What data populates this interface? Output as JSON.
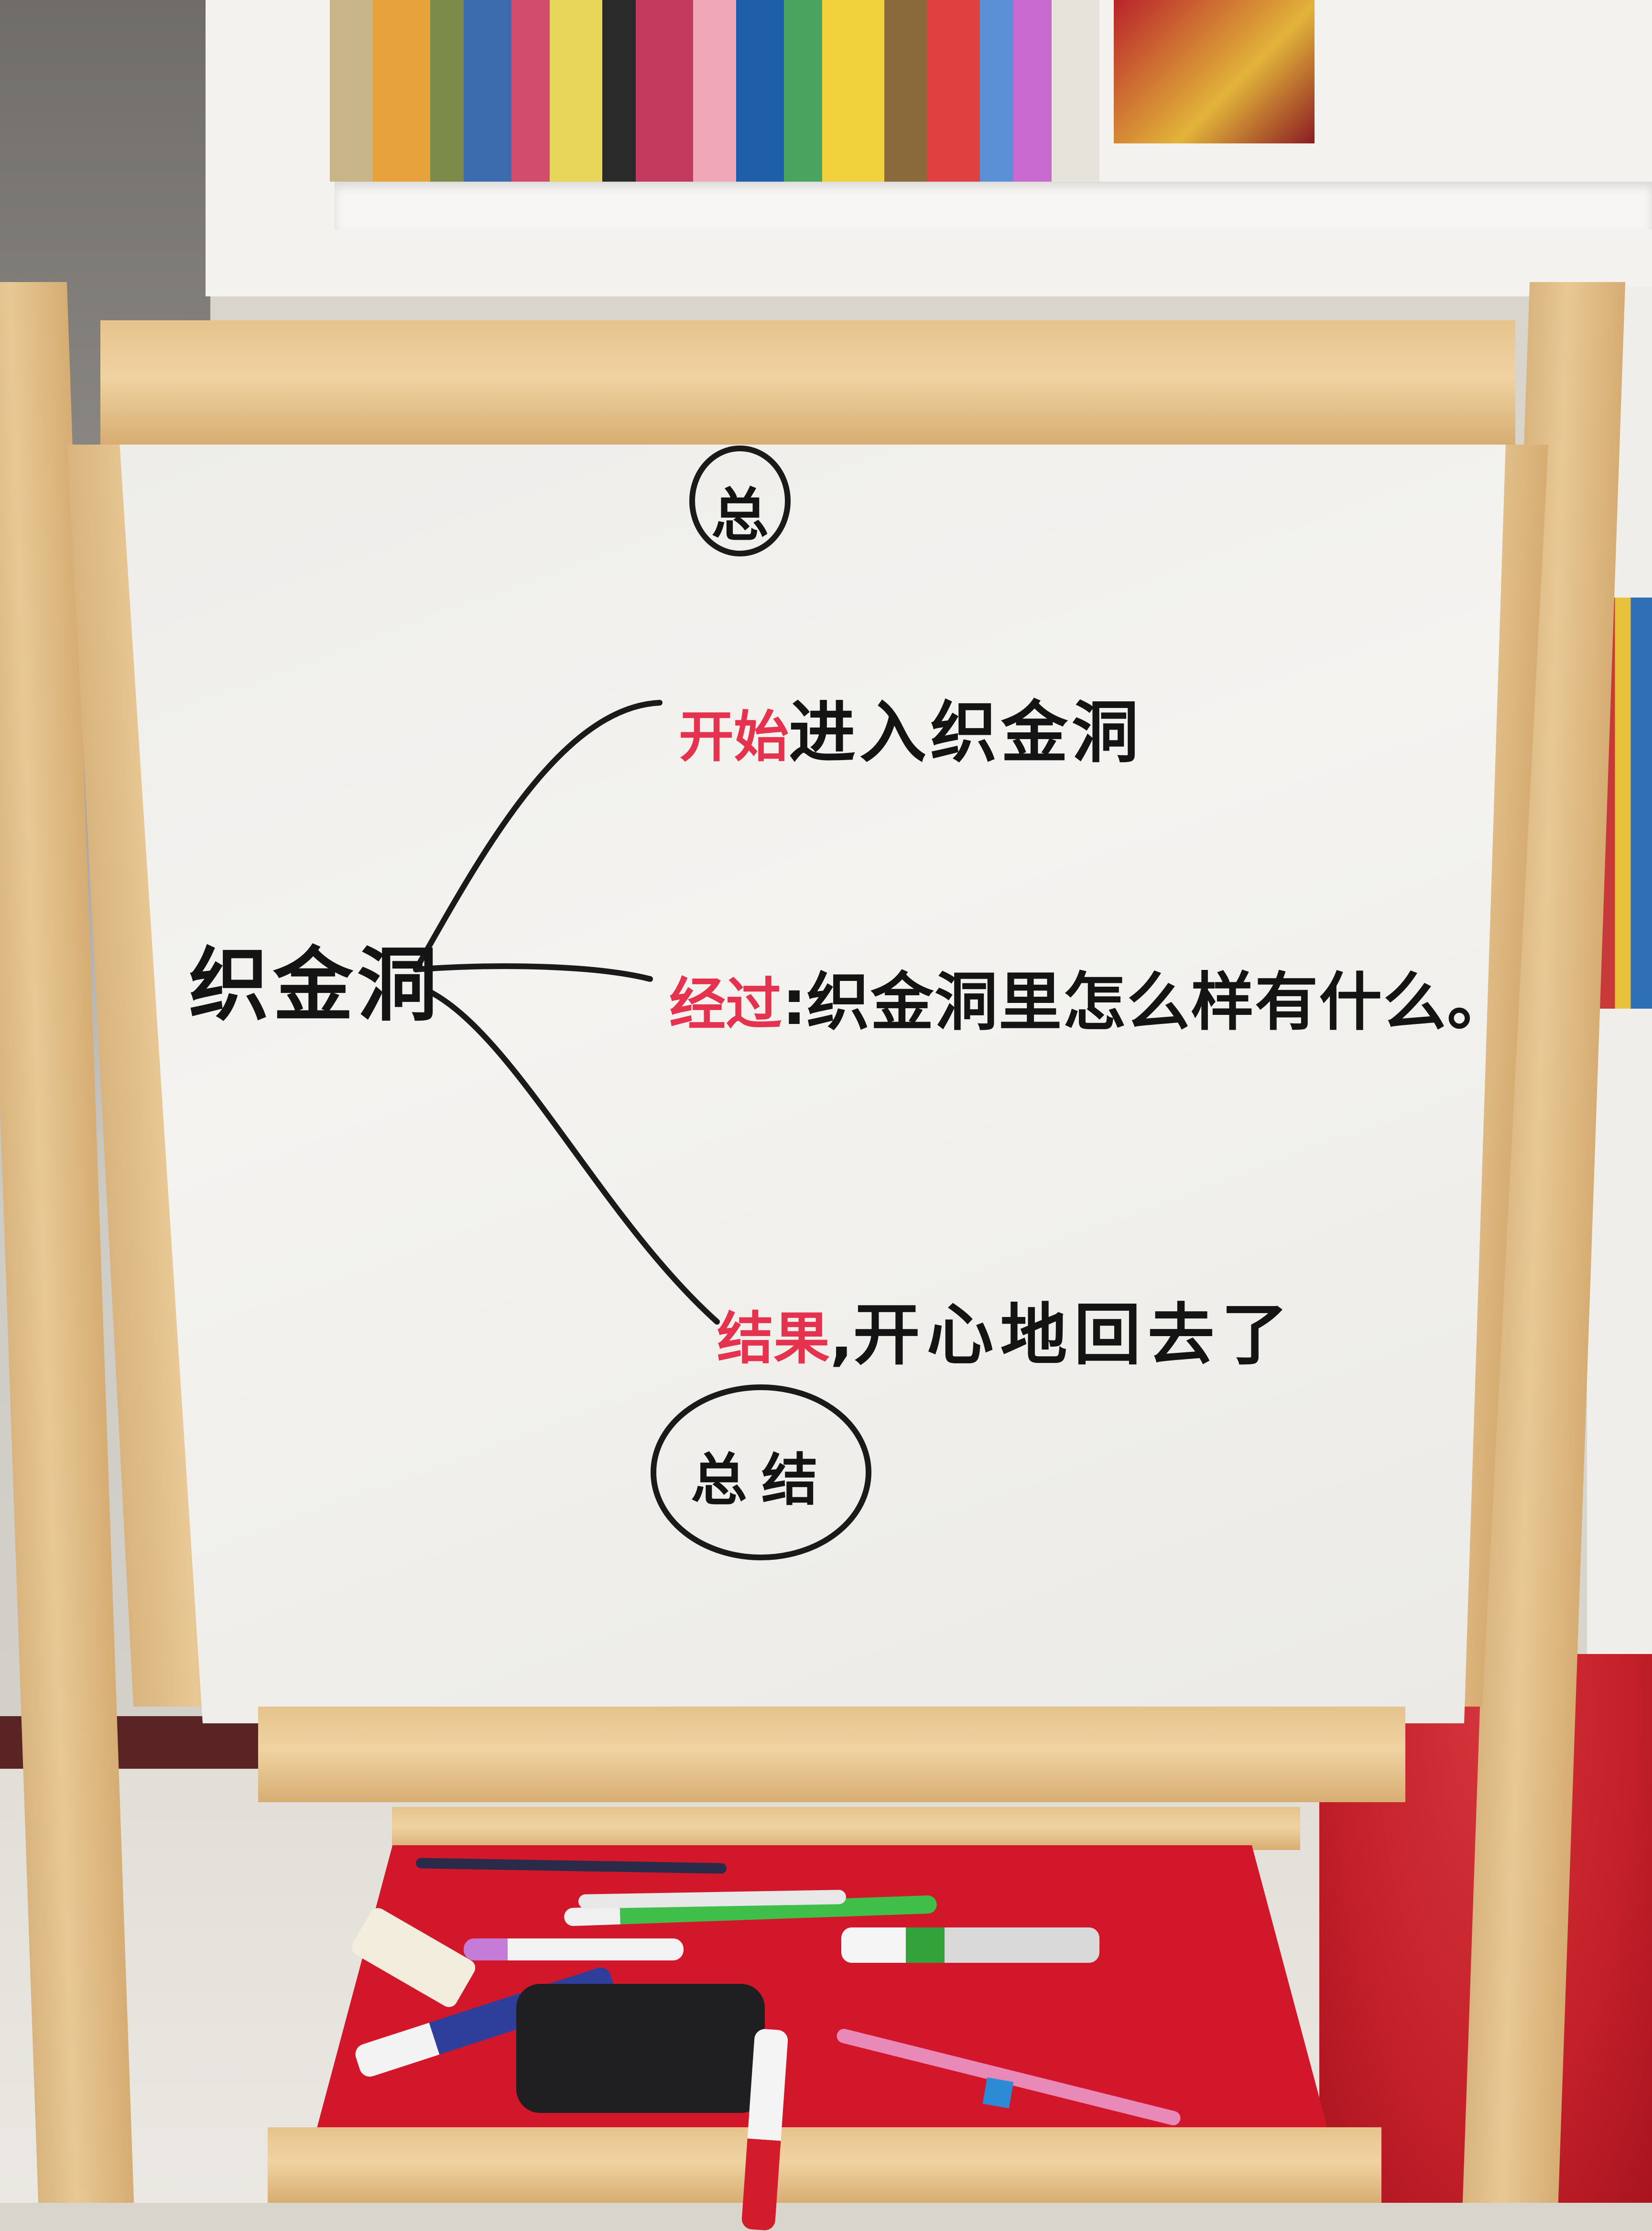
{
  "whiteboard": {
    "top_badge": "总",
    "root": "织金洞",
    "branches": [
      {
        "label": "开始",
        "text": "进入织金洞"
      },
      {
        "label": "经过",
        "text": "织金洞里怎么样有什么。"
      },
      {
        "label": "结果",
        "text": "开心地回去了"
      }
    ],
    "bottom_badge": "总结"
  }
}
